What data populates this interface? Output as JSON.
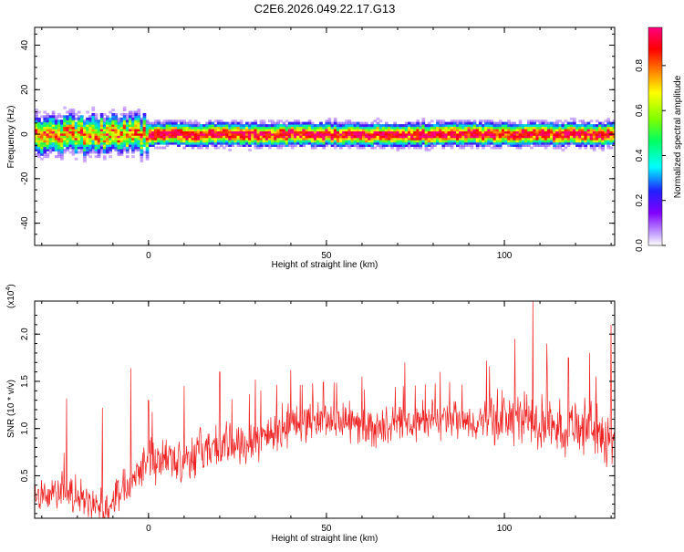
{
  "title": "C2E6.2026.049.22.17.G13",
  "chart_data": [
    {
      "type": "heatmap",
      "xlabel": "Height of straight line (km)",
      "ylabel": "Frequency (Hz)",
      "xlim": [
        -32,
        131
      ],
      "ylim": [
        -50,
        48
      ],
      "x_ticks": [
        0,
        50,
        100
      ],
      "x_tick_labels": [
        "0",
        "50",
        "100"
      ],
      "y_ticks": [
        -40,
        -20,
        0,
        20,
        40
      ],
      "y_tick_labels": [
        "-40",
        "-20",
        "0",
        "20",
        "40"
      ],
      "ridge_frequency_hz": 0,
      "grid": false,
      "colorbar": {
        "label": "Normalized spectral amplitude",
        "range": [
          0,
          0.97
        ],
        "ticks": [
          0,
          0.2,
          0.4,
          0.6,
          0.8
        ],
        "tick_labels": [
          "0.0",
          "0.2",
          "0.4",
          "0.6",
          "0.8"
        ],
        "colors": [
          "#ffffff",
          "#c8a8ff",
          "#8000ff",
          "#2020ff",
          "#00ffff",
          "#00ff60",
          "#80ff00",
          "#ffff00",
          "#ff8000",
          "#ff0000",
          "#ff0080"
        ]
      }
    },
    {
      "type": "line",
      "xlabel": "Height of straight line (km)",
      "ylabel": "SNR (10 * v/v)",
      "y_multiplier_label": "(x10",
      "y_multiplier_exp": "4",
      "y_multiplier_close": ")",
      "xlim": [
        -32,
        131
      ],
      "ylim": [
        0.05,
        2.35
      ],
      "x_ticks": [
        0,
        50,
        100
      ],
      "x_tick_labels": [
        "0",
        "50",
        "100"
      ],
      "y_ticks": [
        0.5,
        1.0,
        1.5,
        2.0
      ],
      "y_tick_labels": [
        "0.5",
        "1.0",
        "1.5",
        "2.0"
      ],
      "line_color": "#ee2222",
      "x": [
        -32,
        -28,
        -24,
        -20,
        -16,
        -12,
        -8,
        -4,
        0,
        5,
        10,
        15,
        20,
        25,
        30,
        35,
        40,
        45,
        50,
        55,
        60,
        65,
        70,
        75,
        80,
        85,
        90,
        95,
        100,
        105,
        110,
        115,
        120,
        125,
        130
      ],
      "y": [
        0.32,
        0.3,
        0.35,
        0.28,
        0.18,
        0.15,
        0.35,
        0.52,
        0.7,
        0.66,
        0.68,
        0.78,
        0.8,
        0.84,
        0.9,
        0.96,
        1.05,
        1.08,
        1.1,
        1.08,
        1.02,
        1.0,
        1.05,
        1.06,
        1.08,
        1.1,
        1.05,
        1.08,
        1.12,
        1.1,
        1.05,
        1.0,
        1.05,
        1.0,
        0.85
      ],
      "spikes": [
        {
          "x": -23,
          "y": 1.32
        },
        {
          "x": -13,
          "y": 1.22
        },
        {
          "x": -5,
          "y": 1.64
        },
        {
          "x": 0,
          "y": 1.3
        },
        {
          "x": 10,
          "y": 1.45
        },
        {
          "x": 20,
          "y": 1.6
        },
        {
          "x": 30,
          "y": 1.52
        },
        {
          "x": 40,
          "y": 1.62
        },
        {
          "x": 60,
          "y": 1.55
        },
        {
          "x": 72,
          "y": 1.7
        },
        {
          "x": 82,
          "y": 1.6
        },
        {
          "x": 95,
          "y": 1.72
        },
        {
          "x": 103,
          "y": 1.95
        },
        {
          "x": 108,
          "y": 2.35
        },
        {
          "x": 112,
          "y": 1.9
        },
        {
          "x": 118,
          "y": 1.75
        },
        {
          "x": 124,
          "y": 1.8
        },
        {
          "x": 130,
          "y": 2.1
        }
      ]
    }
  ]
}
